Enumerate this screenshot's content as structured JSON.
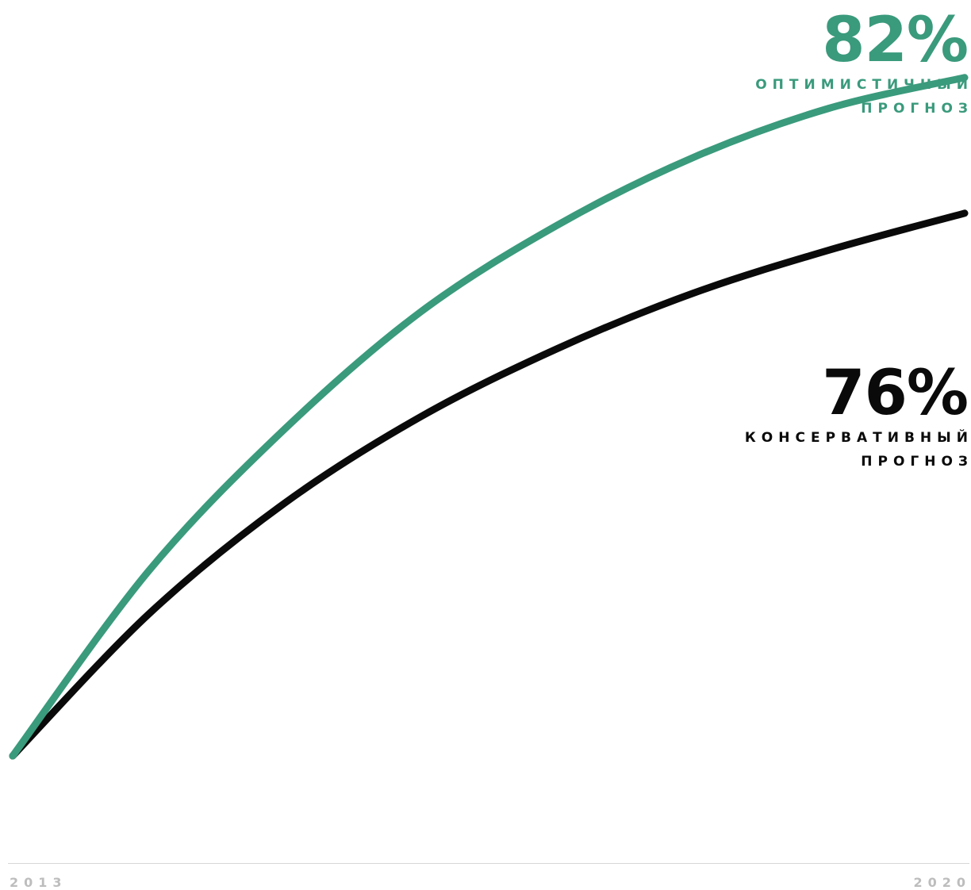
{
  "chart_data": {
    "type": "line",
    "x": [
      2013,
      2014,
      2015,
      2016,
      2017,
      2018,
      2019,
      2020
    ],
    "xlim": [
      2013,
      2020
    ],
    "x_tick_labels": [
      "2013",
      "2020"
    ],
    "series": [
      {
        "name": "ОПТИМИСТИЧНЫЙ ПРОГНОЗ",
        "end_label": "82%",
        "color": "#3a9a7c",
        "values": [
          0,
          0.3,
          0.53,
          0.72,
          0.86,
          0.97,
          1.05,
          1.1
        ]
      },
      {
        "name": "КОНСЕРВАТИВНЫЙ ПРОГНОЗ",
        "end_label": "76%",
        "color": "#0a0a0a",
        "values": [
          0,
          0.23,
          0.41,
          0.55,
          0.66,
          0.75,
          0.82,
          0.88
        ]
      }
    ],
    "ylim": [
      0,
      1.2
    ],
    "grid": false,
    "axis_line_color": "#d7d7d7",
    "tick_color": "#bdbdbd"
  },
  "labels": {
    "optimistic": {
      "value": "82%",
      "line1": "ОПТИМИСТИЧНЫЙ",
      "line2": "ПРОГНОЗ"
    },
    "conservative": {
      "value": "76%",
      "line1": "КОНСЕРВАТИВНЫЙ",
      "line2": "ПРОГНОЗ"
    }
  },
  "axis": {
    "start": "2013",
    "end": "2020"
  }
}
